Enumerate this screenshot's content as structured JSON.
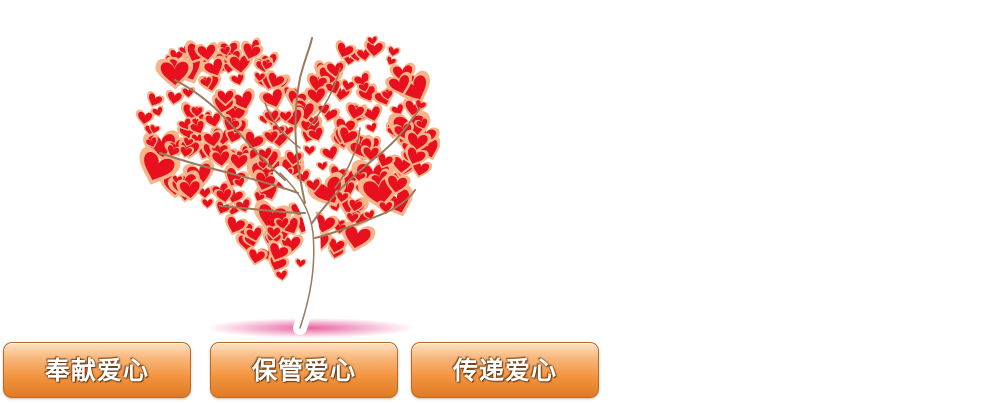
{
  "image": {
    "icon": "heart-tree-illustration",
    "colors": {
      "heart_red": "#e8101e",
      "heart_glow": "#f7b48a",
      "trunk": "#ffffff",
      "ground_shadow": "#e44a8e"
    }
  },
  "buttons": [
    {
      "label": "奉献爱心"
    },
    {
      "label": "保管爱心"
    },
    {
      "label": "传递爱心"
    }
  ],
  "button_style": {
    "fill_top": "#fde2c4",
    "fill_bottom": "#e07a24",
    "border": "#b86a2a"
  }
}
